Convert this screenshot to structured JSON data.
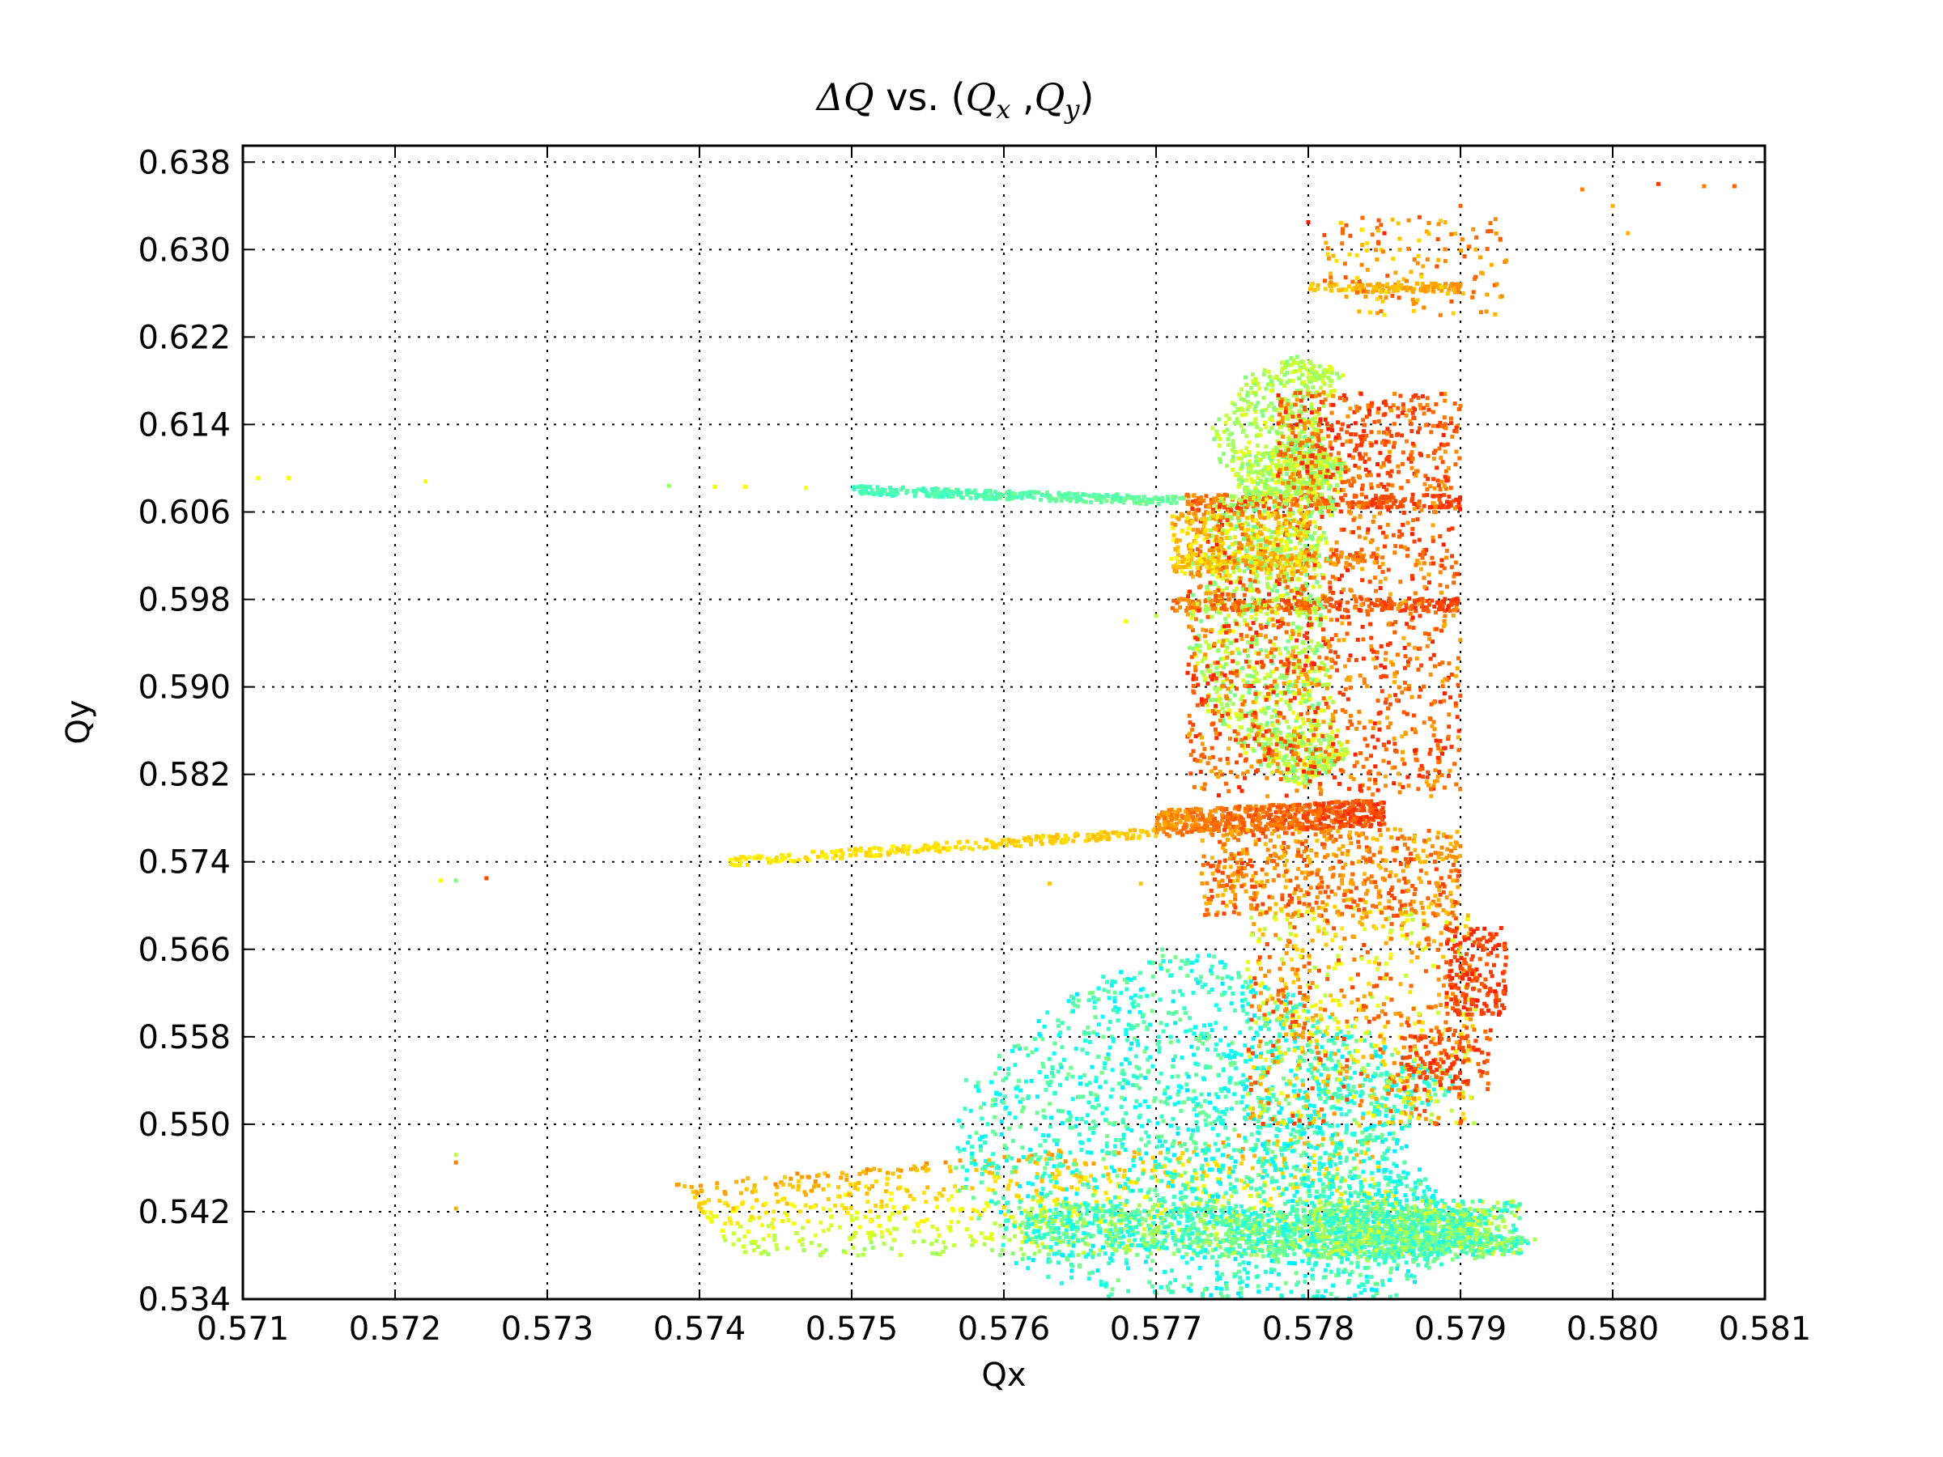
{
  "chart_data": {
    "type": "scatter",
    "title": {
      "delta": "ΔQ",
      "vs": " vs. (",
      "qx_base": "Q",
      "qx_sub": "x",
      "comma": " ,",
      "qy_base": "Q",
      "qy_sub": "y",
      "close": ")"
    },
    "xlabel": "Qx",
    "ylabel": "Qy",
    "xlim": [
      0.571,
      0.581
    ],
    "ylim": [
      0.534,
      0.6395
    ],
    "x_ticks": [
      "0.571",
      "0.572",
      "0.573",
      "0.574",
      "0.575",
      "0.576",
      "0.577",
      "0.578",
      "0.579",
      "0.580",
      "0.581"
    ],
    "y_ticks": [
      "0.534",
      "0.542",
      "0.550",
      "0.558",
      "0.566",
      "0.574",
      "0.582",
      "0.590",
      "0.598",
      "0.606",
      "0.614",
      "0.622",
      "0.630",
      "0.638"
    ],
    "grid": true,
    "colormap": "jet",
    "color_range": [
      0.35,
      0.85
    ],
    "points": [
      [
        0.5711,
        0.6091,
        0.62
      ],
      [
        0.5713,
        0.6091,
        0.62
      ],
      [
        0.5722,
        0.6088,
        0.62
      ],
      [
        0.5738,
        0.6084,
        0.52
      ],
      [
        0.5741,
        0.6083,
        0.6
      ],
      [
        0.5743,
        0.6083,
        0.62
      ],
      [
        0.5747,
        0.6082,
        0.62
      ],
      [
        0.5723,
        0.5723,
        0.62
      ],
      [
        0.5724,
        0.5723,
        0.5
      ],
      [
        0.5726,
        0.5725,
        0.8
      ],
      [
        0.5724,
        0.5472,
        0.56
      ],
      [
        0.5724,
        0.5465,
        0.75
      ],
      [
        0.5724,
        0.5423,
        0.7
      ],
      [
        0.5745,
        0.5445,
        0.74
      ],
      [
        0.5763,
        0.572,
        0.68
      ],
      [
        0.5769,
        0.572,
        0.68
      ],
      [
        0.5768,
        0.596,
        0.62
      ],
      [
        0.577,
        0.5965,
        0.56
      ],
      [
        0.578,
        0.6325,
        0.85
      ],
      [
        0.5785,
        0.6315,
        0.85
      ],
      [
        0.5798,
        0.6355,
        0.75
      ],
      [
        0.5803,
        0.636,
        0.82
      ],
      [
        0.5806,
        0.6358,
        0.75
      ],
      [
        0.5808,
        0.6358,
        0.78
      ],
      [
        0.58,
        0.634,
        0.7
      ],
      [
        0.5801,
        0.6315,
        0.7
      ],
      [
        0.5791,
        0.63,
        0.7
      ],
      [
        0.579,
        0.634,
        0.78
      ],
      [
        0.5791,
        0.6275,
        0.78
      ],
      [
        0.5793,
        0.629,
        0.72
      ],
      [
        0.5786,
        0.631,
        0.68
      ],
      [
        0.5789,
        0.6325,
        0.7
      ]
    ],
    "regions": [
      {
        "kind": "line",
        "x": [
          0.575,
          0.5772
        ],
        "y": [
          0.608,
          0.607
        ],
        "c": [
          0.42,
          0.5
        ],
        "count": 300,
        "jy": 0.0004
      },
      {
        "kind": "line",
        "x": [
          0.5742,
          0.577
        ],
        "y": [
          0.574,
          0.5767
        ],
        "c": [
          0.62,
          0.7
        ],
        "count": 260,
        "jy": 0.0004
      },
      {
        "kind": "line",
        "x": [
          0.577,
          0.5785
        ],
        "y": [
          0.5775,
          0.5785
        ],
        "c": [
          0.7,
          0.85
        ],
        "count": 600,
        "jy": 0.0012
      },
      {
        "kind": "line",
        "x": [
          0.5772,
          0.579
        ],
        "y": [
          0.607,
          0.607
        ],
        "c": [
          0.72,
          0.85
        ],
        "count": 250,
        "jy": 0.0006
      },
      {
        "kind": "line",
        "x": [
          0.5771,
          0.579
        ],
        "y": [
          0.5975,
          0.5975
        ],
        "c": [
          0.72,
          0.85
        ],
        "count": 250,
        "jy": 0.0006
      },
      {
        "kind": "line",
        "x": [
          0.5771,
          0.5785
        ],
        "y": [
          0.6015,
          0.6015
        ],
        "c": [
          0.65,
          0.8
        ],
        "count": 150,
        "jy": 0.0006
      },
      {
        "kind": "line",
        "x": [
          0.578,
          0.579
        ],
        "y": [
          0.6265,
          0.6265
        ],
        "c": [
          0.65,
          0.75
        ],
        "count": 120,
        "jy": 0.0004
      },
      {
        "kind": "fan",
        "x0": 0.5743,
        "x1": 0.5787,
        "yTop": [
          0.5445,
          0.55
        ],
        "yBot": 0.538,
        "c": [
          0.5,
          0.75
        ],
        "count": 900,
        "jx": 5e-05
      },
      {
        "kind": "arc",
        "cx": 0.5795,
        "cy": 0.548,
        "rx": [
          0.0009,
          0.0038
        ],
        "ry": [
          0.007,
          0.023
        ],
        "a": [
          2.2,
          4.3
        ],
        "c": [
          0.35,
          0.5
        ],
        "count": 2600,
        "jx": 0.0001,
        "jy": 0.0003
      },
      {
        "kind": "arc",
        "cx": 0.5795,
        "cy": 0.541,
        "rx": [
          0.0005,
          0.0035
        ],
        "ry": [
          0.0015,
          0.0035
        ],
        "a": [
          2.6,
          4.6
        ],
        "c": [
          0.38,
          0.55
        ],
        "count": 1200,
        "jx": 0.0001,
        "jy": 0.0002
      },
      {
        "kind": "box",
        "x": [
          0.5776,
          0.5791
        ],
        "y": [
          0.55,
          0.57
        ],
        "c": [
          0.55,
          0.82
        ],
        "count": 700
      },
      {
        "kind": "box",
        "x": [
          0.578,
          0.5794
        ],
        "y": [
          0.538,
          0.543
        ],
        "c": [
          0.4,
          0.6
        ],
        "count": 500
      },
      {
        "kind": "box",
        "x": [
          0.5789,
          0.5793
        ],
        "y": [
          0.56,
          0.568
        ],
        "c": [
          0.78,
          0.85
        ],
        "count": 180
      },
      {
        "kind": "box",
        "x": [
          0.5786,
          0.5792
        ],
        "y": [
          0.553,
          0.559
        ],
        "c": [
          0.76,
          0.85
        ],
        "count": 120
      },
      {
        "kind": "box",
        "x": [
          0.5773,
          0.579
        ],
        "y": [
          0.569,
          0.577
        ],
        "c": [
          0.68,
          0.82
        ],
        "count": 550
      },
      {
        "kind": "arc",
        "cx": 0.5783,
        "cy": 0.597,
        "rx": [
          0.0002,
          0.0011
        ],
        "ry": [
          0.014,
          0.017
        ],
        "a": [
          1.9,
          4.4
        ],
        "c": [
          0.48,
          0.62
        ],
        "count": 1400,
        "jx": 4e-05,
        "jy": 0.0003
      },
      {
        "kind": "box",
        "x": [
          0.5772,
          0.579
        ],
        "y": [
          0.58,
          0.607
        ],
        "c": [
          0.7,
          0.85
        ],
        "count": 1100
      },
      {
        "kind": "box",
        "x": [
          0.5771,
          0.578
        ],
        "y": [
          0.6,
          0.606
        ],
        "c": [
          0.62,
          0.75
        ],
        "count": 260
      },
      {
        "kind": "arc",
        "cx": 0.5783,
        "cy": 0.613,
        "rx": [
          0.0002,
          0.0009
        ],
        "ry": [
          0.006,
          0.008
        ],
        "a": [
          2.0,
          4.0
        ],
        "c": [
          0.5,
          0.6
        ],
        "count": 500,
        "jx": 4e-05,
        "jy": 0.0003
      },
      {
        "kind": "box",
        "x": [
          0.5778,
          0.579
        ],
        "y": [
          0.608,
          0.617
        ],
        "c": [
          0.72,
          0.85
        ],
        "count": 400
      },
      {
        "kind": "box",
        "x": [
          0.5781,
          0.5793
        ],
        "y": [
          0.624,
          0.633
        ],
        "c": [
          0.65,
          0.8
        ],
        "count": 140
      }
    ]
  }
}
